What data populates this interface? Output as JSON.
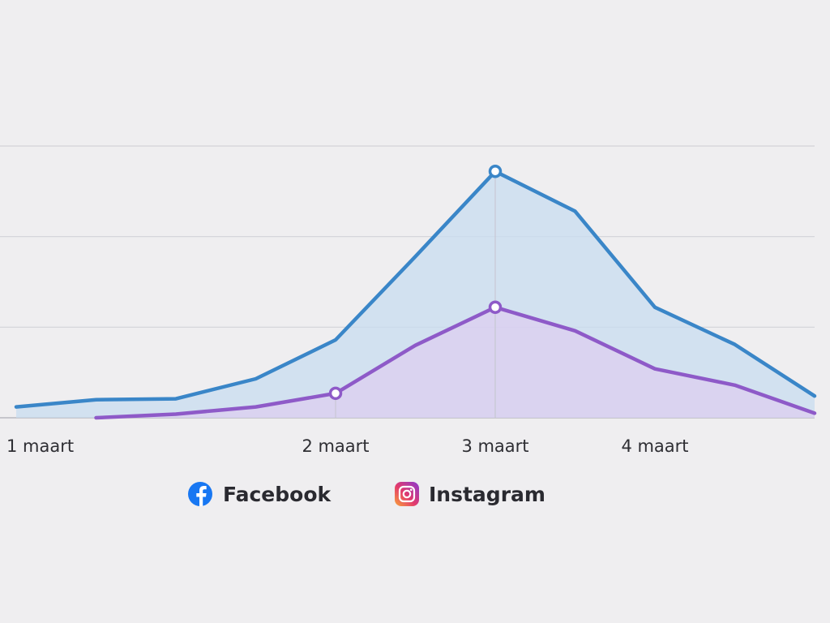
{
  "chart_data": {
    "type": "area",
    "x_ticks": [
      {
        "x": 0,
        "label": "1 maart"
      },
      {
        "x": 4,
        "label": "2 maart"
      },
      {
        "x": 6,
        "label": "3 maart"
      },
      {
        "x": 8,
        "label": "4 maart"
      }
    ],
    "ylim": [
      0,
      30
    ],
    "grid": true,
    "legend_position": "bottom-center",
    "series": [
      {
        "name": "Facebook",
        "color": "#3a86c8",
        "fill": "#c8dcf0",
        "icon": "facebook-icon",
        "x": [
          0,
          1,
          2,
          3,
          4,
          5,
          6,
          7,
          8,
          9,
          10
        ],
        "values": [
          1.2,
          2.0,
          2.1,
          4.3,
          8.6,
          17.8,
          27.2,
          22.8,
          12.2,
          8.1,
          2.4
        ],
        "highlight": [
          6
        ]
      },
      {
        "name": "Instagram",
        "color": "#8e5ac8",
        "fill": "#dccdf0",
        "icon": "instagram-icon",
        "x": [
          1,
          2,
          3,
          4,
          5,
          6,
          7,
          8,
          9,
          10
        ],
        "values": [
          0.0,
          0.4,
          1.2,
          2.7,
          8.0,
          12.2,
          9.6,
          5.4,
          3.6,
          0.5
        ],
        "highlight": [
          3,
          5
        ]
      }
    ]
  }
}
